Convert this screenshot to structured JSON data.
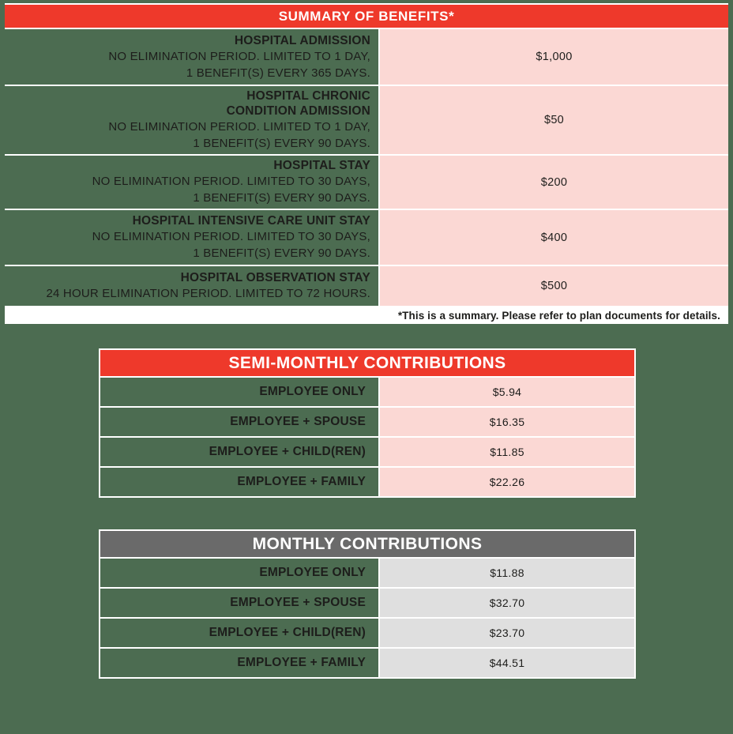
{
  "colors": {
    "page_green": "#4C6C51",
    "header_red": "#EE392B",
    "header_gray": "#6A6A6A",
    "cell_pink": "#FBD8D4",
    "cell_light_gray": "#DFDFDF",
    "separator_white": "#FFFFFF",
    "text_dark": "#1D1D1B",
    "text_white": "#FFFFFF"
  },
  "summary_table": {
    "header": "SUMMARY OF BENEFITS*",
    "rows": [
      {
        "title_lines": [
          "HOSPITAL ADMISSION"
        ],
        "desc_lines": [
          "NO ELIMINATION PERIOD. LIMITED TO 1 DAY,",
          "1 BENEFIT(S) EVERY 365 DAYS."
        ],
        "value": "$1,000"
      },
      {
        "title_lines": [
          "HOSPITAL CHRONIC",
          "CONDITION ADMISSION"
        ],
        "desc_lines": [
          "NO ELIMINATION PERIOD. LIMITED TO 1 DAY,",
          "1 BENEFIT(S) EVERY 90 DAYS."
        ],
        "value": "$50"
      },
      {
        "title_lines": [
          "HOSPITAL STAY"
        ],
        "desc_lines": [
          "NO ELIMINATION PERIOD. LIMITED TO 30 DAYS,",
          "1 BENEFIT(S) EVERY 90 DAYS."
        ],
        "value": "$200"
      },
      {
        "title_lines": [
          "HOSPITAL INTENSIVE CARE UNIT STAY"
        ],
        "desc_lines": [
          "NO ELIMINATION PERIOD. LIMITED TO 30 DAYS,",
          "1 BENEFIT(S) EVERY 90 DAYS."
        ],
        "value": "$400"
      },
      {
        "title_lines": [
          "HOSPITAL OBSERVATION STAY"
        ],
        "desc_lines": [
          "24 HOUR ELIMINATION PERIOD. LIMITED TO 72 HOURS."
        ],
        "value": "$500"
      }
    ],
    "footnote": "*This is a summary. Please refer to plan documents for details."
  },
  "semi_monthly_table": {
    "header": "SEMI-MONTHLY CONTRIBUTIONS",
    "rows": [
      {
        "label": "EMPLOYEE ONLY",
        "value": "$5.94"
      },
      {
        "label": "EMPLOYEE + SPOUSE",
        "value": "$16.35"
      },
      {
        "label": "EMPLOYEE + CHILD(REN)",
        "value": "$11.85"
      },
      {
        "label": "EMPLOYEE + FAMILY",
        "value": "$22.26"
      }
    ]
  },
  "monthly_table": {
    "header": "MONTHLY CONTRIBUTIONS",
    "rows": [
      {
        "label": "EMPLOYEE ONLY",
        "value": "$11.88"
      },
      {
        "label": "EMPLOYEE + SPOUSE",
        "value": "$32.70"
      },
      {
        "label": "EMPLOYEE + CHILD(REN)",
        "value": "$23.70"
      },
      {
        "label": "EMPLOYEE + FAMILY",
        "value": "$44.51"
      }
    ]
  }
}
